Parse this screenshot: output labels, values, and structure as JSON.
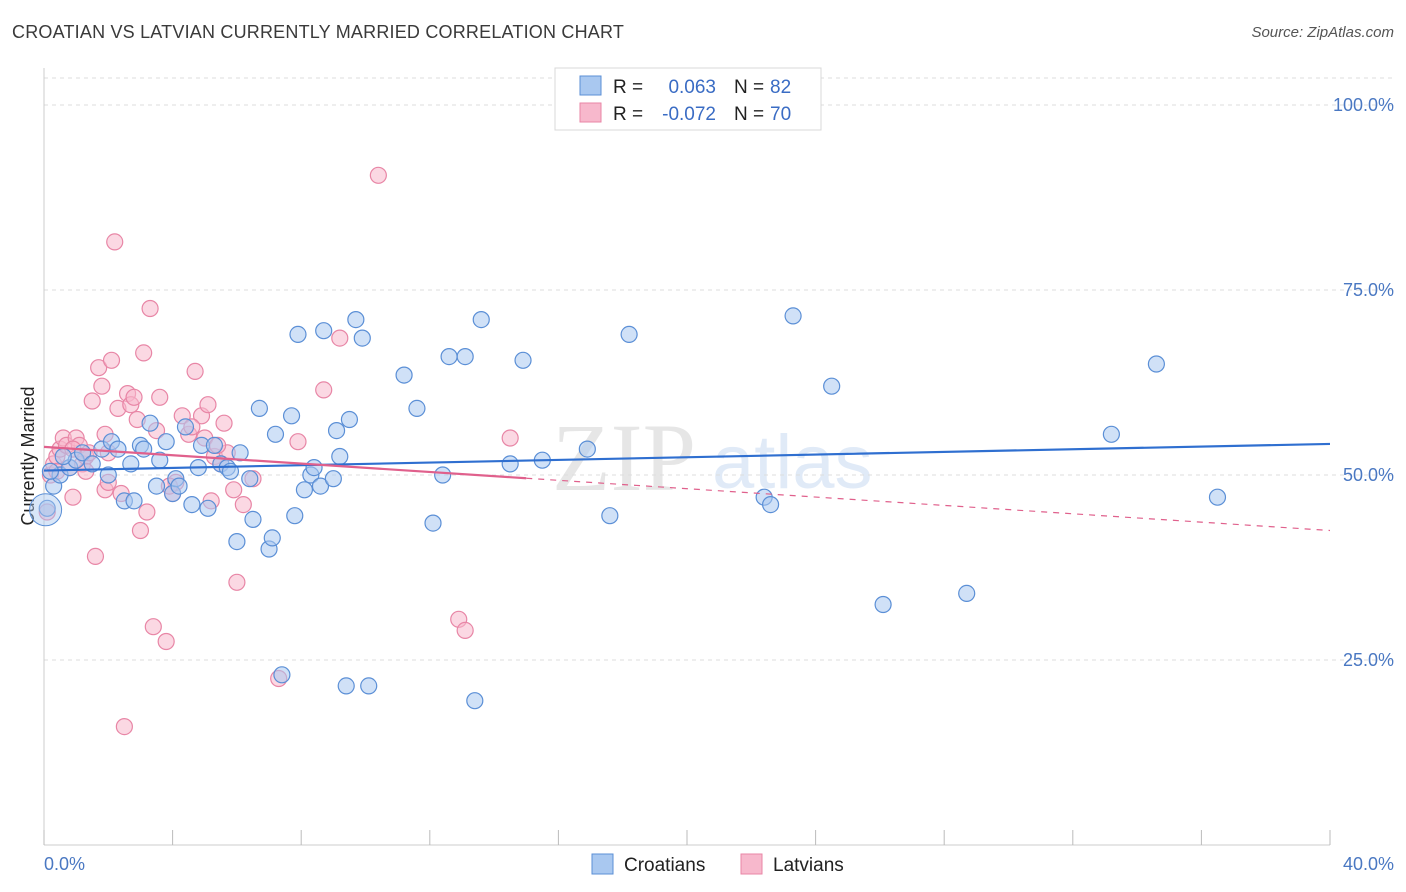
{
  "title": "CROATIAN VS LATVIAN CURRENTLY MARRIED CORRELATION CHART",
  "source": "Source: ZipAtlas.com",
  "watermark": {
    "zip": "ZIP",
    "atlas": "atlas"
  },
  "colors": {
    "blue_fill": "#a9c8f0",
    "blue_stroke": "#5b8fd6",
    "blue_line": "#2f6fd0",
    "pink_fill": "#f7b8cc",
    "pink_stroke": "#e886a6",
    "pink_line": "#e0608c",
    "tick_text": "#4a78c2",
    "grid": "#dddddd"
  },
  "legend": {
    "rows": [
      {
        "r_label": "R =",
        "r_value": "0.063",
        "n_label": "N =",
        "n_value": "82"
      },
      {
        "r_label": "R =",
        "r_value": "-0.072",
        "n_label": "N =",
        "n_value": "70"
      }
    ]
  },
  "bottom_legend": [
    "Croatians",
    "Latvians"
  ],
  "chart_data": {
    "type": "scatter",
    "xlabel": "",
    "ylabel": "Currently Married",
    "xlim": [
      0,
      40
    ],
    "ylim": [
      0,
      105
    ],
    "x_tick_labels": [
      "0.0%",
      "40.0%"
    ],
    "y_ticks": [
      25,
      50,
      75,
      100
    ],
    "y_tick_labels": [
      "25.0%",
      "50.0%",
      "75.0%",
      "100.0%"
    ],
    "grid": "horizontal dashed",
    "legend_position": "top-center",
    "series": [
      {
        "name": "Croatians",
        "color": "#a9c8f0",
        "trend": {
          "x0": 0,
          "y0": 50.6,
          "x1": 40,
          "y1": 54.2,
          "solid_until": 40
        },
        "points": [
          [
            0.1,
            45.5
          ],
          [
            0.3,
            48.5
          ],
          [
            0.5,
            50.0
          ],
          [
            0.8,
            51.0
          ],
          [
            1.0,
            52.0
          ],
          [
            1.2,
            53.0
          ],
          [
            1.5,
            51.5
          ],
          [
            1.8,
            53.5
          ],
          [
            2.0,
            50.0
          ],
          [
            2.1,
            54.5
          ],
          [
            2.3,
            53.5
          ],
          [
            2.5,
            46.5
          ],
          [
            2.7,
            51.5
          ],
          [
            2.8,
            46.5
          ],
          [
            3.0,
            54.0
          ],
          [
            3.1,
            53.5
          ],
          [
            3.3,
            57.0
          ],
          [
            3.5,
            48.5
          ],
          [
            3.6,
            52.0
          ],
          [
            3.8,
            54.5
          ],
          [
            4.0,
            47.5
          ],
          [
            4.1,
            49.5
          ],
          [
            4.2,
            48.5
          ],
          [
            4.4,
            56.5
          ],
          [
            4.6,
            46.0
          ],
          [
            4.8,
            51.0
          ],
          [
            4.9,
            54.0
          ],
          [
            5.1,
            45.5
          ],
          [
            5.3,
            54.0
          ],
          [
            5.5,
            51.5
          ],
          [
            5.7,
            51.0
          ],
          [
            6.0,
            41.0
          ],
          [
            6.1,
            53.0
          ],
          [
            6.4,
            49.5
          ],
          [
            6.5,
            44.0
          ],
          [
            6.7,
            59.0
          ],
          [
            7.0,
            40.0
          ],
          [
            7.1,
            41.5
          ],
          [
            7.2,
            55.5
          ],
          [
            7.4,
            23.0
          ],
          [
            7.7,
            58.0
          ],
          [
            7.8,
            44.5
          ],
          [
            7.9,
            69.0
          ],
          [
            8.1,
            48.0
          ],
          [
            8.3,
            50.0
          ],
          [
            8.4,
            51.0
          ],
          [
            8.6,
            48.5
          ],
          [
            8.7,
            69.5
          ],
          [
            9.0,
            49.5
          ],
          [
            9.1,
            56.0
          ],
          [
            9.4,
            21.5
          ],
          [
            9.5,
            57.5
          ],
          [
            9.7,
            71.0
          ],
          [
            9.9,
            68.5
          ],
          [
            10.1,
            21.5
          ],
          [
            11.2,
            63.5
          ],
          [
            11.6,
            59.0
          ],
          [
            12.1,
            43.5
          ],
          [
            12.4,
            50.0
          ],
          [
            12.6,
            66.0
          ],
          [
            13.1,
            66.0
          ],
          [
            13.4,
            19.5
          ],
          [
            13.6,
            71.0
          ],
          [
            14.5,
            51.5
          ],
          [
            14.9,
            65.5
          ],
          [
            15.5,
            52.0
          ],
          [
            16.9,
            53.5
          ],
          [
            17.6,
            44.5
          ],
          [
            18.2,
            69.0
          ],
          [
            22.4,
            47.0
          ],
          [
            22.6,
            46.0
          ],
          [
            23.3,
            71.5
          ],
          [
            24.5,
            62.0
          ],
          [
            26.1,
            32.5
          ],
          [
            28.7,
            34.0
          ],
          [
            33.2,
            55.5
          ],
          [
            34.6,
            65.0
          ],
          [
            36.5,
            47.0
          ],
          [
            0.2,
            50.5
          ],
          [
            0.6,
            52.5
          ],
          [
            5.8,
            50.5
          ],
          [
            9.2,
            52.5
          ]
        ]
      },
      {
        "name": "Latvians",
        "color": "#f7b8cc",
        "trend": {
          "x0": 0,
          "y0": 53.8,
          "x1": 40,
          "y1": 42.5,
          "solid_until": 15
        },
        "points": [
          [
            0.1,
            45.0
          ],
          [
            0.2,
            50.0
          ],
          [
            0.3,
            51.5
          ],
          [
            0.4,
            52.5
          ],
          [
            0.5,
            53.5
          ],
          [
            0.6,
            55.0
          ],
          [
            0.7,
            54.0
          ],
          [
            0.8,
            51.0
          ],
          [
            0.9,
            47.0
          ],
          [
            1.0,
            55.0
          ],
          [
            1.1,
            54.0
          ],
          [
            1.2,
            51.5
          ],
          [
            1.3,
            52.5
          ],
          [
            1.4,
            53.0
          ],
          [
            1.5,
            60.0
          ],
          [
            1.6,
            39.0
          ],
          [
            1.7,
            64.5
          ],
          [
            1.8,
            62.0
          ],
          [
            1.9,
            48.0
          ],
          [
            2.0,
            49.0
          ],
          [
            2.1,
            65.5
          ],
          [
            2.2,
            81.5
          ],
          [
            2.3,
            59.0
          ],
          [
            2.4,
            47.5
          ],
          [
            2.5,
            16.0
          ],
          [
            2.6,
            61.0
          ],
          [
            2.7,
            59.5
          ],
          [
            2.8,
            60.5
          ],
          [
            2.9,
            57.5
          ],
          [
            3.0,
            42.5
          ],
          [
            3.1,
            66.5
          ],
          [
            3.2,
            45.0
          ],
          [
            3.3,
            72.5
          ],
          [
            3.4,
            29.5
          ],
          [
            3.5,
            56.0
          ],
          [
            3.6,
            60.5
          ],
          [
            3.8,
            27.5
          ],
          [
            4.0,
            47.5
          ],
          [
            4.1,
            49.0
          ],
          [
            4.3,
            58.0
          ],
          [
            4.5,
            55.5
          ],
          [
            4.7,
            64.0
          ],
          [
            4.9,
            58.0
          ],
          [
            5.0,
            55.0
          ],
          [
            5.1,
            59.5
          ],
          [
            5.2,
            46.5
          ],
          [
            5.3,
            52.5
          ],
          [
            5.5,
            51.5
          ],
          [
            5.6,
            57.0
          ],
          [
            5.7,
            53.0
          ],
          [
            5.9,
            48.0
          ],
          [
            6.0,
            35.5
          ],
          [
            6.2,
            46.0
          ],
          [
            7.3,
            22.5
          ],
          [
            7.9,
            54.5
          ],
          [
            8.7,
            61.5
          ],
          [
            9.2,
            68.5
          ],
          [
            10.4,
            90.5
          ],
          [
            12.9,
            30.5
          ],
          [
            13.1,
            29.0
          ],
          [
            14.5,
            55.0
          ],
          [
            2.0,
            53.0
          ],
          [
            1.9,
            55.5
          ],
          [
            1.3,
            50.5
          ],
          [
            0.9,
            53.5
          ],
          [
            0.4,
            50.5
          ],
          [
            5.4,
            54.0
          ],
          [
            3.9,
            48.5
          ],
          [
            4.6,
            56.5
          ],
          [
            6.5,
            49.5
          ]
        ]
      }
    ]
  }
}
